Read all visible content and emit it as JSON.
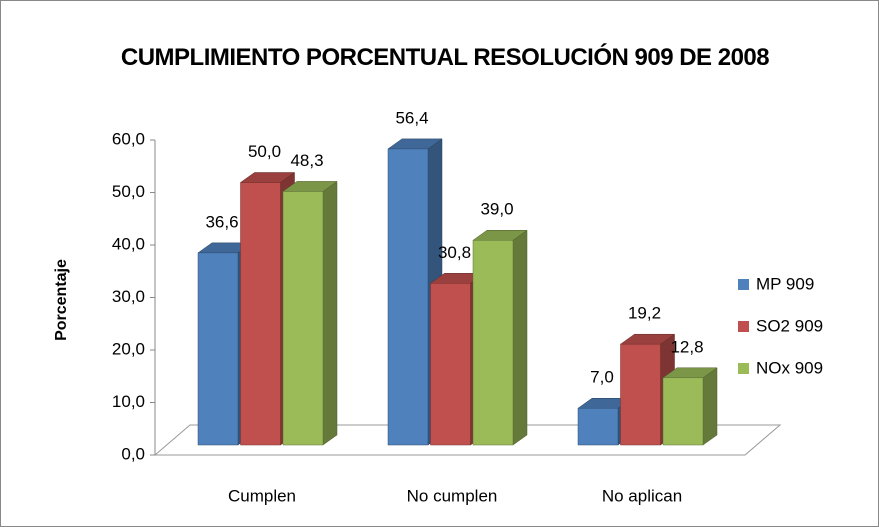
{
  "chart_data": {
    "type": "bar3d",
    "title": "CUMPLIMIENTO PORCENTUAL RESOLUCIÓN 909 DE 2008",
    "y_label": "Porcentaje",
    "categories": [
      "Cumplen",
      "No cumplen",
      "No aplican"
    ],
    "series": [
      {
        "name": "MP 909",
        "color": "#4f81bd",
        "values": [
          36.6,
          56.4,
          7.0
        ],
        "value_labels": [
          "36,6",
          "56,4",
          "7,0"
        ]
      },
      {
        "name": "SO2 909",
        "color": "#c0504d",
        "values": [
          50.0,
          30.8,
          19.2
        ],
        "value_labels": [
          "50,0",
          "30,8",
          "19,2"
        ]
      },
      {
        "name": "NOx 909",
        "color": "#9bbb59",
        "values": [
          48.3,
          39.0,
          12.8
        ],
        "value_labels": [
          "48,3",
          "39,0",
          "12,8"
        ]
      }
    ],
    "ylim": [
      0,
      60
    ],
    "yticks": [
      {
        "value": 0,
        "label": "0,0"
      },
      {
        "value": 10,
        "label": "10,0"
      },
      {
        "value": 20,
        "label": "20,0"
      },
      {
        "value": 30,
        "label": "30,0"
      },
      {
        "value": 40,
        "label": "40,0"
      },
      {
        "value": 50,
        "label": "50,0"
      },
      {
        "value": 60,
        "label": "60,0"
      }
    ],
    "legend": "right"
  }
}
